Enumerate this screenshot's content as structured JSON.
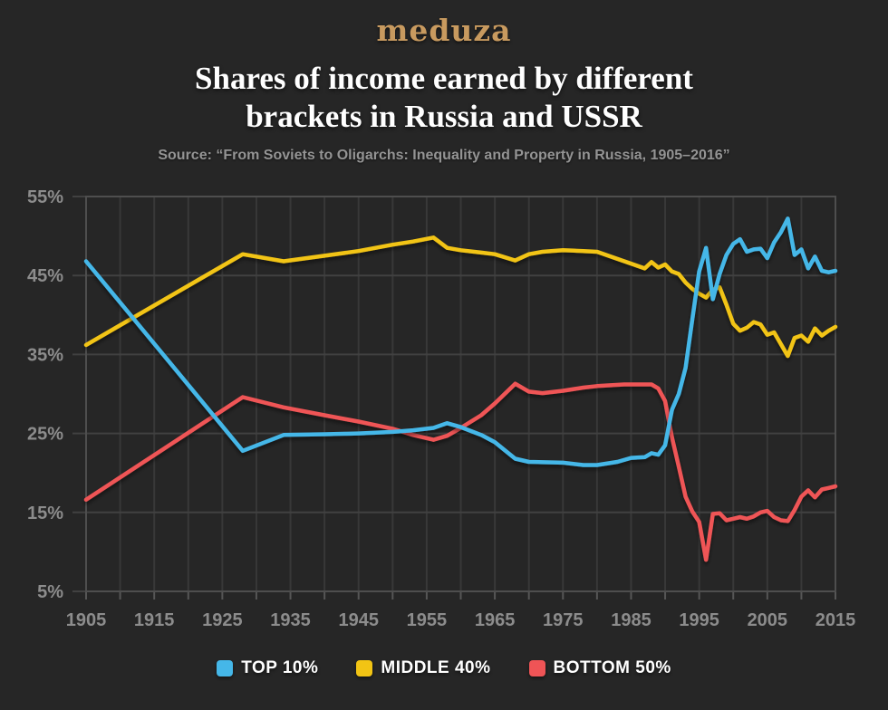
{
  "header": {
    "logo_text": "meduza",
    "title_lines": [
      "Shares of income earned by different",
      "brackets in Russia and USSR"
    ],
    "source": "Source: “From Soviets to Oligarchs: Inequality and Property in Russia, 1905–2016”"
  },
  "colors": {
    "background": "#262626",
    "grid_vertical": "#383838",
    "grid_horizontal": "#414141",
    "grid_major": "#565656",
    "axis_border": "#4e4e4e",
    "tick_label": "#8c8c8c",
    "title_text": "#ffffff",
    "source_text": "#949494",
    "logo_gold": "#c89a5f",
    "top10_blue": "#45b7e8",
    "middle40_yellow": "#f2c414",
    "bottom50_red": "#ef5456"
  },
  "chart_data": {
    "type": "line",
    "title": "Shares of income earned by different brackets in Russia and USSR",
    "subtitle": "Source: “From Soviets to Oligarchs: Inequality and Property in Russia, 1905–2016”",
    "xlabel": "",
    "ylabel": "",
    "xlim": [
      1905,
      2015
    ],
    "ylim": [
      5,
      55
    ],
    "x_grid_step": 5,
    "x_label_step": 10,
    "y_grid_step": 10,
    "y_tick_suffix": "%",
    "x_tick_labels": [
      "1905",
      "1915",
      "1925",
      "1935",
      "1945",
      "1955",
      "1965",
      "1975",
      "1985",
      "1995",
      "2005",
      "2015"
    ],
    "y_tick_labels": [
      "5%",
      "15%",
      "25%",
      "35%",
      "45%",
      "55%"
    ],
    "grid": true,
    "legend_position": "bottom",
    "series": [
      {
        "name": "TOP 10%",
        "color": "#45b7e8",
        "points": [
          [
            1905,
            46.8
          ],
          [
            1928,
            22.8
          ],
          [
            1934,
            24.8
          ],
          [
            1940,
            24.9
          ],
          [
            1945,
            25.0
          ],
          [
            1950,
            25.2
          ],
          [
            1953,
            25.4
          ],
          [
            1956,
            25.7
          ],
          [
            1958,
            26.3
          ],
          [
            1960,
            25.8
          ],
          [
            1963,
            24.8
          ],
          [
            1965,
            23.9
          ],
          [
            1968,
            21.8
          ],
          [
            1970,
            21.4
          ],
          [
            1975,
            21.3
          ],
          [
            1978,
            21.0
          ],
          [
            1980,
            21.0
          ],
          [
            1983,
            21.4
          ],
          [
            1985,
            21.9
          ],
          [
            1987,
            22.0
          ],
          [
            1988,
            22.5
          ],
          [
            1989,
            22.3
          ],
          [
            1990,
            23.5
          ],
          [
            1991,
            28.0
          ],
          [
            1992,
            30.0
          ],
          [
            1993,
            33.3
          ],
          [
            1994,
            39.5
          ],
          [
            1995,
            45.5
          ],
          [
            1996,
            48.5
          ],
          [
            1997,
            42.0
          ],
          [
            1998,
            45.2
          ],
          [
            1999,
            47.6
          ],
          [
            2000,
            49.0
          ],
          [
            2001,
            49.6
          ],
          [
            2002,
            48.0
          ],
          [
            2003,
            48.3
          ],
          [
            2004,
            48.4
          ],
          [
            2005,
            47.2
          ],
          [
            2006,
            49.2
          ],
          [
            2007,
            50.5
          ],
          [
            2008,
            52.2
          ],
          [
            2009,
            47.6
          ],
          [
            2010,
            48.3
          ],
          [
            2011,
            45.9
          ],
          [
            2012,
            47.4
          ],
          [
            2013,
            45.6
          ],
          [
            2014,
            45.4
          ],
          [
            2015,
            45.6
          ]
        ]
      },
      {
        "name": "MIDDLE 40%",
        "color": "#f2c414",
        "points": [
          [
            1905,
            36.2
          ],
          [
            1928,
            47.7
          ],
          [
            1934,
            46.8
          ],
          [
            1940,
            47.5
          ],
          [
            1945,
            48.1
          ],
          [
            1950,
            48.9
          ],
          [
            1953,
            49.3
          ],
          [
            1956,
            49.8
          ],
          [
            1958,
            48.5
          ],
          [
            1960,
            48.2
          ],
          [
            1963,
            47.9
          ],
          [
            1965,
            47.7
          ],
          [
            1968,
            46.9
          ],
          [
            1970,
            47.7
          ],
          [
            1972,
            48.0
          ],
          [
            1975,
            48.2
          ],
          [
            1978,
            48.1
          ],
          [
            1980,
            48.0
          ],
          [
            1982,
            47.4
          ],
          [
            1985,
            46.5
          ],
          [
            1986,
            46.2
          ],
          [
            1987,
            45.9
          ],
          [
            1988,
            46.7
          ],
          [
            1989,
            46.0
          ],
          [
            1990,
            46.4
          ],
          [
            1991,
            45.5
          ],
          [
            1992,
            45.2
          ],
          [
            1993,
            44.1
          ],
          [
            1994,
            43.3
          ],
          [
            1995,
            42.7
          ],
          [
            1996,
            42.2
          ],
          [
            1997,
            43.2
          ],
          [
            1998,
            43.5
          ],
          [
            1999,
            41.3
          ],
          [
            2000,
            38.9
          ],
          [
            2001,
            38.0
          ],
          [
            2002,
            38.4
          ],
          [
            2003,
            39.1
          ],
          [
            2004,
            38.8
          ],
          [
            2005,
            37.5
          ],
          [
            2006,
            37.8
          ],
          [
            2007,
            36.3
          ],
          [
            2008,
            34.8
          ],
          [
            2009,
            37.1
          ],
          [
            2010,
            37.4
          ],
          [
            2011,
            36.6
          ],
          [
            2012,
            38.3
          ],
          [
            2013,
            37.4
          ],
          [
            2014,
            38.0
          ],
          [
            2015,
            38.5
          ]
        ]
      },
      {
        "name": "BOTTOM 50%",
        "color": "#ef5456",
        "points": [
          [
            1905,
            16.6
          ],
          [
            1928,
            29.6
          ],
          [
            1934,
            28.3
          ],
          [
            1940,
            27.3
          ],
          [
            1945,
            26.5
          ],
          [
            1950,
            25.6
          ],
          [
            1953,
            24.8
          ],
          [
            1956,
            24.2
          ],
          [
            1958,
            24.7
          ],
          [
            1960,
            25.7
          ],
          [
            1963,
            27.3
          ],
          [
            1965,
            28.8
          ],
          [
            1968,
            31.3
          ],
          [
            1970,
            30.3
          ],
          [
            1972,
            30.1
          ],
          [
            1975,
            30.4
          ],
          [
            1978,
            30.8
          ],
          [
            1980,
            31.0
          ],
          [
            1984,
            31.2
          ],
          [
            1988,
            31.2
          ],
          [
            1989,
            30.7
          ],
          [
            1990,
            29.1
          ],
          [
            1991,
            24.5
          ],
          [
            1992,
            20.8
          ],
          [
            1993,
            17.0
          ],
          [
            1994,
            15.1
          ],
          [
            1995,
            13.8
          ],
          [
            1996,
            9.0
          ],
          [
            1997,
            14.8
          ],
          [
            1998,
            14.9
          ],
          [
            1999,
            14.0
          ],
          [
            2000,
            14.2
          ],
          [
            2001,
            14.4
          ],
          [
            2002,
            14.2
          ],
          [
            2003,
            14.5
          ],
          [
            2004,
            15.0
          ],
          [
            2005,
            15.2
          ],
          [
            2006,
            14.4
          ],
          [
            2007,
            14.0
          ],
          [
            2008,
            13.9
          ],
          [
            2009,
            15.3
          ],
          [
            2010,
            17.0
          ],
          [
            2011,
            17.8
          ],
          [
            2012,
            16.9
          ],
          [
            2013,
            17.9
          ],
          [
            2014,
            18.1
          ],
          [
            2015,
            18.3
          ]
        ]
      }
    ]
  }
}
